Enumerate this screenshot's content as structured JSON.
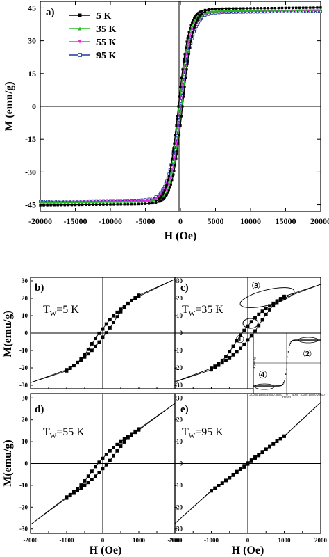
{
  "chart_data": [
    {
      "id": "a",
      "type": "line",
      "panel_label": "a)",
      "xlabel": "H (Oe)",
      "ylabel": "M (emu/g)",
      "xlim": [
        -20000,
        20000
      ],
      "ylim": [
        -48,
        48
      ],
      "xticks": [
        -20000,
        -15000,
        -10000,
        -5000,
        0,
        5000,
        10000,
        15000,
        20000
      ],
      "yticks": [
        -45,
        -30,
        -15,
        0,
        15,
        30,
        45
      ],
      "legend_position": "top-left",
      "series": [
        {
          "name": "5 K",
          "color": "#000000",
          "marker": "square",
          "Ms": 44.5,
          "Hc": 300,
          "width": 1500
        },
        {
          "name": "35 K",
          "color": "#22bb22",
          "marker": "triangle",
          "Ms": 43.5,
          "Hc": 200,
          "width": 1500
        },
        {
          "name": "55 K",
          "color": "#ee22ee",
          "marker": "triangle-down",
          "Ms": 43.2,
          "Hc": 150,
          "width": 1600
        },
        {
          "name": "95 K",
          "color": "#1a3a9a",
          "marker": "open-square",
          "Ms": 42.8,
          "Hc": 100,
          "width": 1700
        }
      ]
    },
    {
      "id": "b",
      "type": "scatter",
      "panel_label": "b)",
      "tw_label": "T",
      "tw_sub": "W",
      "tw_value": "=5 K",
      "xlim": [
        -2000,
        2000
      ],
      "ylim": [
        -32,
        32
      ],
      "yticks": [
        -30,
        -20,
        -10,
        0,
        10,
        20,
        30
      ],
      "endpoint_y": [
        -28.5,
        31
      ],
      "loop": {
        "k": 10.5,
        "a": 13.5,
        "d": 4.0,
        "b": 4.8,
        "A": 10.0,
        "h0": 350
      }
    },
    {
      "id": "c",
      "type": "scatter",
      "panel_label": "c)",
      "tw_label": "T",
      "tw_sub": "W",
      "tw_value": "=35 K",
      "xlim": [
        -2000,
        2000
      ],
      "ylim": [
        -32,
        32
      ],
      "endpoint_y": [
        -28,
        28
      ],
      "loop": {
        "k": 9.0,
        "a": 7.0,
        "d": 3.0,
        "b": 8.0,
        "A": 10.0,
        "h0": 400
      },
      "annotations": [
        "①",
        "②",
        "③",
        "④"
      ],
      "inset": {
        "xlabel": "H (Oe)",
        "ylabel": "M (emu/g)",
        "xticks": [
          -20000,
          -15000,
          -10000,
          -5000,
          0,
          5000,
          10000,
          15000,
          20000
        ]
      }
    },
    {
      "id": "d",
      "type": "scatter",
      "panel_label": "d)",
      "tw_label": "T",
      "tw_sub": "W",
      "tw_value": "=55 K",
      "xlim": [
        -2000,
        2000
      ],
      "ylim": [
        -32,
        32
      ],
      "yticks": [
        -30,
        -20,
        -10,
        0,
        10,
        20,
        30
      ],
      "xticks": [
        -2000,
        -1000,
        0,
        1000,
        2000
      ],
      "endpoint_y": [
        -28,
        27.5
      ],
      "loop": {
        "k": 9.0,
        "a": 3.5,
        "d": 1.5,
        "b": 5.0,
        "A": 5.5,
        "h0": 400
      }
    },
    {
      "id": "e",
      "type": "scatter",
      "panel_label": "e)",
      "tw_label": "T",
      "tw_sub": "W",
      "tw_value": "=95 K",
      "xlim": [
        -2000,
        2000
      ],
      "ylim": [
        -32,
        32
      ],
      "xticks": [
        -2000,
        -1000,
        0,
        1000,
        2000
      ],
      "endpoint_y": [
        -27.5,
        28
      ],
      "loop": {
        "k": 11.0,
        "a": 0.5,
        "d": 0.8,
        "b": 0.2,
        "A": 1.5,
        "h0": 400
      }
    }
  ],
  "bottom_labels": {
    "xlabel": "H (Oe)",
    "ylabel": "M(emu/g)"
  }
}
